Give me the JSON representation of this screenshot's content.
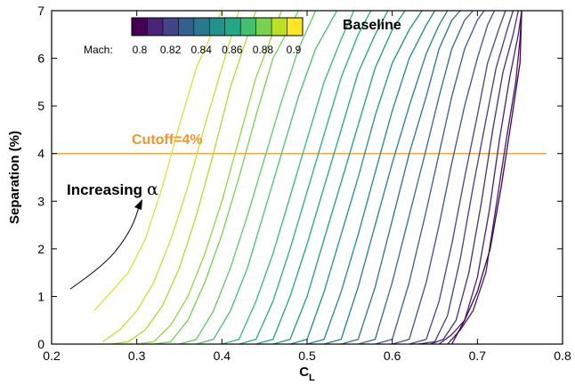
{
  "chart_data": {
    "type": "line",
    "xlabel": "C",
    "xlabel_sub": "L",
    "ylabel": "Separation (%)",
    "xlim": [
      0.2,
      0.8
    ],
    "ylim": [
      0,
      7
    ],
    "xticks": [
      "0.2",
      "0.3",
      "0.4",
      "0.5",
      "0.6",
      "0.7",
      "0.8"
    ],
    "yticks": [
      "0",
      "1",
      "2",
      "3",
      "4",
      "5",
      "6",
      "7"
    ],
    "colorbar": {
      "label": "Mach:",
      "ticks": [
        "0.8",
        "0.82",
        "0.84",
        "0.86",
        "0.88",
        "0.9"
      ],
      "colors": [
        "#440154",
        "#482475",
        "#414487",
        "#355f8d",
        "#2a788e",
        "#21918c",
        "#22a884",
        "#44bf70",
        "#7ad151",
        "#bddf26",
        "#fde725"
      ]
    },
    "annotations": {
      "baseline": "Baseline",
      "cutoff_label": "Cutoff=4%",
      "increasing": "Increasing",
      "alpha_symbol": "α"
    },
    "cutoff": {
      "value": 4,
      "color": "#f0962a"
    },
    "series": [
      {
        "color": "#e0e03a",
        "x": [
          0.25,
          0.27,
          0.29,
          0.31,
          0.33,
          0.35,
          0.37,
          0.4
        ],
        "y": [
          0.7,
          1.1,
          1.5,
          2.2,
          3.3,
          4.6,
          5.8,
          7.0
        ]
      },
      {
        "color": "#c9df36",
        "x": [
          0.26,
          0.28,
          0.3,
          0.32,
          0.34,
          0.36,
          0.38,
          0.4,
          0.42
        ],
        "y": [
          0.05,
          0.3,
          0.7,
          1.3,
          2.2,
          3.3,
          4.6,
          5.8,
          7.0
        ]
      },
      {
        "color": "#addc30",
        "x": [
          0.27,
          0.29,
          0.31,
          0.33,
          0.35,
          0.37,
          0.39,
          0.41,
          0.44
        ],
        "y": [
          0.0,
          0.05,
          0.3,
          0.8,
          1.6,
          2.7,
          4.0,
          5.4,
          7.0
        ]
      },
      {
        "color": "#90d743",
        "x": [
          0.3,
          0.32,
          0.34,
          0.36,
          0.38,
          0.4,
          0.42,
          0.44,
          0.47
        ],
        "y": [
          0.0,
          0.05,
          0.4,
          1.0,
          1.9,
          3.0,
          4.3,
          5.6,
          7.0
        ]
      },
      {
        "color": "#75d054",
        "x": [
          0.32,
          0.34,
          0.36,
          0.38,
          0.4,
          0.42,
          0.44,
          0.46,
          0.49
        ],
        "y": [
          0.0,
          0.05,
          0.5,
          1.3,
          2.3,
          3.5,
          4.8,
          6.0,
          7.0
        ]
      },
      {
        "color": "#5ec962",
        "x": [
          0.35,
          0.37,
          0.39,
          0.41,
          0.43,
          0.45,
          0.47,
          0.49,
          0.51
        ],
        "y": [
          0.0,
          0.1,
          0.7,
          1.6,
          2.7,
          3.9,
          5.1,
          6.2,
          7.0
        ]
      },
      {
        "color": "#47c16e",
        "x": [
          0.37,
          0.39,
          0.41,
          0.43,
          0.45,
          0.47,
          0.49,
          0.51,
          0.535
        ],
        "y": [
          0.0,
          0.1,
          0.7,
          1.6,
          2.8,
          4.0,
          5.2,
          6.2,
          7.0
        ]
      },
      {
        "color": "#35b779",
        "x": [
          0.4,
          0.42,
          0.44,
          0.46,
          0.48,
          0.5,
          0.52,
          0.54,
          0.555
        ],
        "y": [
          0.0,
          0.1,
          0.9,
          1.9,
          3.1,
          4.3,
          5.5,
          6.4,
          7.0
        ]
      },
      {
        "color": "#27ad81",
        "x": [
          0.42,
          0.44,
          0.46,
          0.48,
          0.5,
          0.52,
          0.54,
          0.56,
          0.575
        ],
        "y": [
          0.0,
          0.1,
          0.9,
          2.0,
          3.2,
          4.4,
          5.6,
          6.5,
          7.0
        ]
      },
      {
        "color": "#20a386",
        "x": [
          0.44,
          0.46,
          0.48,
          0.5,
          0.52,
          0.54,
          0.56,
          0.58,
          0.595
        ],
        "y": [
          0.0,
          0.1,
          1.0,
          2.1,
          3.3,
          4.5,
          5.7,
          6.5,
          7.0
        ]
      },
      {
        "color": "#1f998a",
        "x": [
          0.46,
          0.48,
          0.5,
          0.52,
          0.54,
          0.56,
          0.58,
          0.6,
          0.615
        ],
        "y": [
          0.0,
          0.1,
          1.0,
          2.2,
          3.4,
          4.6,
          5.8,
          6.6,
          7.0
        ]
      },
      {
        "color": "#218f8d",
        "x": [
          0.48,
          0.5,
          0.52,
          0.54,
          0.56,
          0.58,
          0.6,
          0.62,
          0.635
        ],
        "y": [
          0.0,
          0.1,
          1.1,
          2.3,
          3.5,
          4.8,
          5.9,
          6.6,
          7.0
        ]
      },
      {
        "color": "#23868e",
        "x": [
          0.5,
          0.52,
          0.54,
          0.56,
          0.58,
          0.6,
          0.62,
          0.64,
          0.65
        ],
        "y": [
          0.0,
          0.1,
          1.1,
          2.3,
          3.6,
          4.9,
          6.0,
          6.7,
          7.0
        ]
      },
      {
        "color": "#277c8e",
        "x": [
          0.52,
          0.54,
          0.56,
          0.58,
          0.6,
          0.62,
          0.64,
          0.655,
          0.665
        ],
        "y": [
          0.0,
          0.1,
          1.2,
          2.5,
          3.8,
          5.0,
          6.1,
          6.7,
          7.0
        ]
      },
      {
        "color": "#2c728e",
        "x": [
          0.54,
          0.56,
          0.58,
          0.6,
          0.62,
          0.64,
          0.655,
          0.67,
          0.68
        ],
        "y": [
          0.0,
          0.1,
          1.2,
          2.6,
          4.0,
          5.2,
          6.2,
          6.8,
          7.0
        ]
      },
      {
        "color": "#31688e",
        "x": [
          0.56,
          0.58,
          0.6,
          0.62,
          0.64,
          0.655,
          0.67,
          0.685,
          0.695
        ],
        "y": [
          0.0,
          0.1,
          1.3,
          2.7,
          4.1,
          5.2,
          6.2,
          6.8,
          7.0
        ]
      },
      {
        "color": "#365d8d",
        "x": [
          0.58,
          0.6,
          0.62,
          0.64,
          0.655,
          0.67,
          0.685,
          0.7,
          0.708
        ],
        "y": [
          0.0,
          0.1,
          1.3,
          2.8,
          4.0,
          5.2,
          6.2,
          6.8,
          7.0
        ]
      },
      {
        "color": "#3b528b",
        "x": [
          0.6,
          0.62,
          0.64,
          0.655,
          0.67,
          0.685,
          0.7,
          0.712,
          0.72
        ],
        "y": [
          0.0,
          0.1,
          1.3,
          2.5,
          3.8,
          5.0,
          6.0,
          6.7,
          7.0
        ]
      },
      {
        "color": "#404688",
        "x": [
          0.62,
          0.64,
          0.655,
          0.67,
          0.685,
          0.7,
          0.712,
          0.725,
          0.733
        ],
        "y": [
          0.0,
          0.1,
          0.9,
          2.1,
          3.5,
          4.8,
          5.9,
          6.6,
          7.0
        ]
      },
      {
        "color": "#443a83",
        "x": [
          0.63,
          0.65,
          0.665,
          0.68,
          0.695,
          0.71,
          0.722,
          0.735,
          0.742
        ],
        "y": [
          0.0,
          0.05,
          0.6,
          1.8,
          3.3,
          4.7,
          5.8,
          6.6,
          7.0
        ]
      },
      {
        "color": "#472d7b",
        "x": [
          0.645,
          0.66,
          0.675,
          0.69,
          0.705,
          0.718,
          0.73,
          0.742,
          0.748
        ],
        "y": [
          0.0,
          0.1,
          0.5,
          1.5,
          3.0,
          4.5,
          5.7,
          6.5,
          7.0
        ]
      },
      {
        "color": "#482173",
        "x": [
          0.655,
          0.67,
          0.685,
          0.7,
          0.714,
          0.726,
          0.738,
          0.748,
          0.752
        ],
        "y": [
          0.0,
          0.2,
          0.5,
          1.4,
          2.8,
          4.3,
          5.6,
          6.5,
          7.0
        ]
      },
      {
        "color": "#48186a",
        "x": [
          0.665,
          0.68,
          0.695,
          0.71,
          0.722,
          0.734,
          0.745,
          0.75,
          0.752
        ],
        "y": [
          0.0,
          0.3,
          0.7,
          1.5,
          2.9,
          4.3,
          5.5,
          6.4,
          7.0
        ]
      },
      {
        "color": "#440154",
        "x": [
          0.67,
          0.685,
          0.7,
          0.715,
          0.728,
          0.74,
          0.75,
          0.752
        ],
        "y": [
          0.0,
          0.5,
          1.1,
          2.0,
          3.3,
          4.7,
          5.9,
          7.0
        ]
      }
    ]
  }
}
